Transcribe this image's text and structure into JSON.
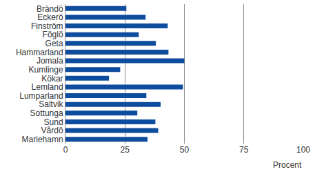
{
  "chart_data": {
    "type": "bar",
    "orientation": "horizontal",
    "categories": [
      "Brändö",
      "Eckerö",
      "Finström",
      "Föglö",
      "Geta",
      "Hammarland",
      "Jomala",
      "Kumlinge",
      "Kökar",
      "Lemland",
      "Lumparland",
      "Saltvik",
      "Sottunga",
      "Sund",
      "Vårdö",
      "Mariehamn"
    ],
    "values": [
      25.6,
      33.7,
      43.0,
      30.8,
      38.0,
      43.3,
      50.0,
      23.0,
      18.3,
      49.4,
      34.0,
      40.0,
      30.2,
      37.8,
      39.0,
      34.5
    ],
    "color": "#0e4c9e",
    "x_label": "Procent",
    "xlim": [
      0,
      100
    ],
    "xticks": [
      0,
      25,
      50,
      75,
      100
    ],
    "grid": true
  }
}
